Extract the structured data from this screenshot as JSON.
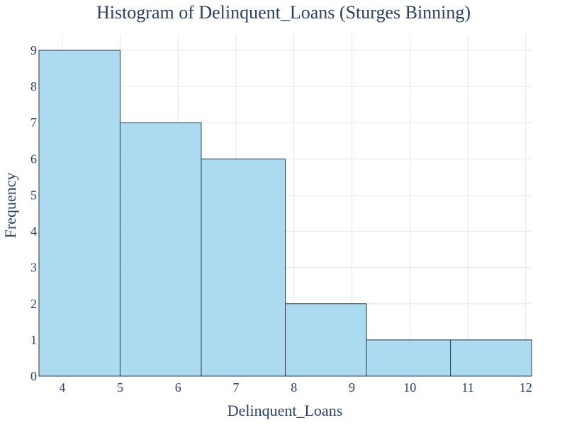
{
  "chart_data": {
    "type": "bar",
    "title": "Histogram of Delinquent_Loans (Sturges Binning)",
    "xlabel": "Delinquent_Loans",
    "ylabel": "Frequency",
    "bins": [
      {
        "start": 3.6,
        "end": 5.0,
        "count": 9
      },
      {
        "start": 5.0,
        "end": 6.4,
        "count": 7
      },
      {
        "start": 6.4,
        "end": 7.85,
        "count": 6
      },
      {
        "start": 7.85,
        "end": 9.25,
        "count": 2
      },
      {
        "start": 9.25,
        "end": 10.7,
        "count": 1
      },
      {
        "start": 10.7,
        "end": 12.1,
        "count": 1
      }
    ],
    "xlim": [
      3.6,
      12.1
    ],
    "ylim": [
      0,
      9.45
    ],
    "x_ticks": [
      4,
      5,
      6,
      7,
      8,
      9,
      10,
      11,
      12
    ],
    "y_ticks": [
      0,
      1,
      2,
      3,
      4,
      5,
      6,
      7,
      8,
      9
    ],
    "grid": true,
    "colors": {
      "bar_fill": "#a8d8f0",
      "bar_stroke": "#2b3a42",
      "text": "#2a3f5f",
      "grid": "#e6e6e6"
    }
  }
}
